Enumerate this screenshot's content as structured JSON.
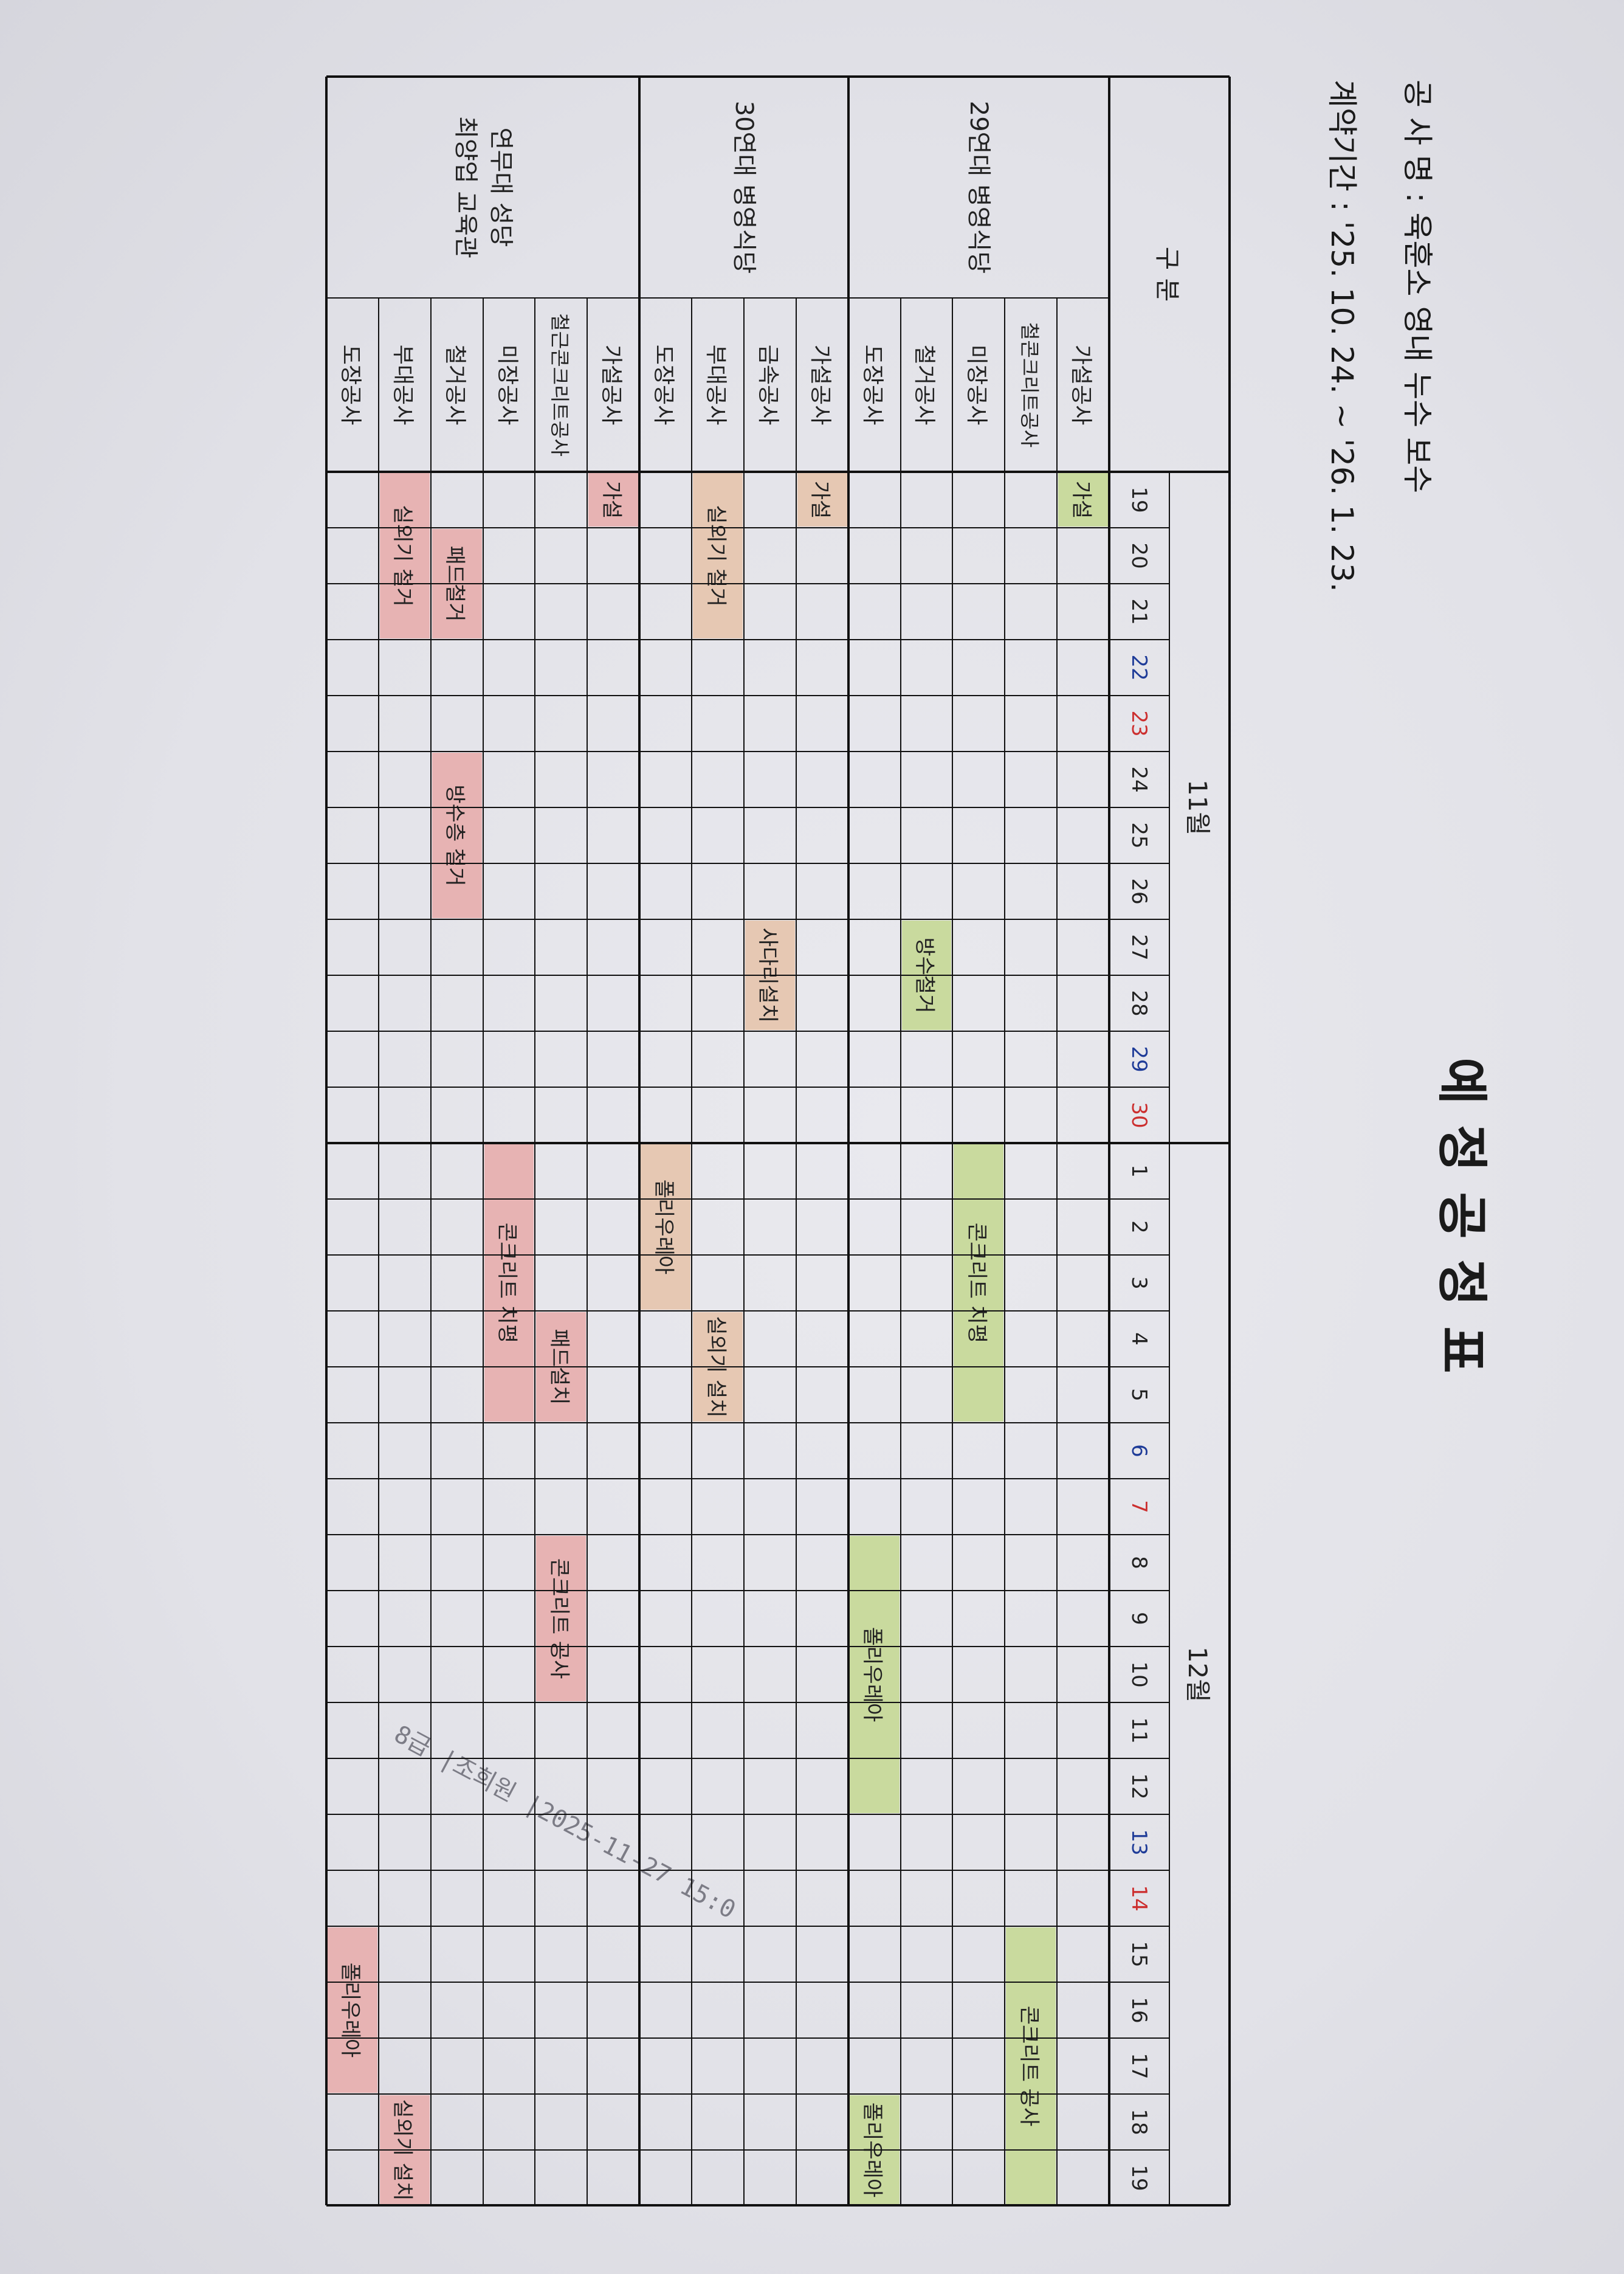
{
  "title": "예 정 공 정 표",
  "project_name": "공 사 명 : 육훈소 영내 누수 보수",
  "contract_period": "계약기간 : '25. 10. 24. ~ '26. 1. 23.",
  "header_label": "구 분",
  "stamp_text": "8급 |조희원 |2025-11-27 15:0",
  "colors": {
    "green": "#c9da9e",
    "peach": "#e6c8b3",
    "pink": "#e7b3b3",
    "sat": "#1f3c98",
    "sun": "#cc2f2f",
    "weekday": "#222222"
  },
  "months": [
    {
      "label": "11월",
      "days": [
        {
          "d": "19",
          "type": "weekday"
        },
        {
          "d": "20",
          "type": "weekday"
        },
        {
          "d": "21",
          "type": "weekday"
        },
        {
          "d": "22",
          "type": "sat"
        },
        {
          "d": "23",
          "type": "sun"
        },
        {
          "d": "24",
          "type": "weekday"
        },
        {
          "d": "25",
          "type": "weekday"
        },
        {
          "d": "26",
          "type": "weekday"
        },
        {
          "d": "27",
          "type": "weekday"
        },
        {
          "d": "28",
          "type": "weekday"
        },
        {
          "d": "29",
          "type": "sat"
        },
        {
          "d": "30",
          "type": "sun"
        }
      ]
    },
    {
      "label": "12월",
      "days": [
        {
          "d": "1",
          "type": "weekday"
        },
        {
          "d": "2",
          "type": "weekday"
        },
        {
          "d": "3",
          "type": "weekday"
        },
        {
          "d": "4",
          "type": "weekday"
        },
        {
          "d": "5",
          "type": "weekday"
        },
        {
          "d": "6",
          "type": "sat"
        },
        {
          "d": "7",
          "type": "sun"
        },
        {
          "d": "8",
          "type": "weekday"
        },
        {
          "d": "9",
          "type": "weekday"
        },
        {
          "d": "10",
          "type": "weekday"
        },
        {
          "d": "11",
          "type": "weekday"
        },
        {
          "d": "12",
          "type": "weekday"
        },
        {
          "d": "13",
          "type": "sat"
        },
        {
          "d": "14",
          "type": "sun"
        },
        {
          "d": "15",
          "type": "weekday"
        },
        {
          "d": "16",
          "type": "weekday"
        },
        {
          "d": "17",
          "type": "weekday"
        },
        {
          "d": "18",
          "type": "weekday"
        },
        {
          "d": "19",
          "type": "weekday"
        }
      ]
    }
  ],
  "groups": [
    {
      "name": [
        "29연대 병영식당"
      ],
      "color": "green",
      "items": [
        {
          "label": "가설공사",
          "bars": [
            {
              "label": "가설",
              "start": "11-19",
              "end": "11-19"
            }
          ]
        },
        {
          "label": "철콘크리트공사",
          "bars": [
            {
              "label": "콘크리트 공사",
              "start": "12-15",
              "end": "12-19"
            }
          ]
        },
        {
          "label": "미장공사",
          "bars": [
            {
              "label": "콘크리트 치평",
              "start": "12-1",
              "end": "12-5"
            }
          ]
        },
        {
          "label": "철거공사",
          "bars": [
            {
              "label": "방수철거",
              "start": "11-27",
              "end": "11-28"
            }
          ]
        },
        {
          "label": "도장공사",
          "bars": [
            {
              "label": "폴리우레아",
              "start": "12-8",
              "end": "12-12"
            },
            {
              "label": "폴리우레아",
              "start": "12-18",
              "end": "12-19"
            }
          ]
        }
      ]
    },
    {
      "name": [
        "30연대 병영식당"
      ],
      "color": "peach",
      "items": [
        {
          "label": "가설공사",
          "bars": [
            {
              "label": "가설",
              "start": "11-19",
              "end": "11-19"
            }
          ]
        },
        {
          "label": "금속공사",
          "bars": [
            {
              "label": "사다리설치",
              "start": "11-27",
              "end": "11-28"
            }
          ]
        },
        {
          "label": "부대공사",
          "bars": [
            {
              "label": "실외기 철거",
              "start": "11-19",
              "end": "11-21"
            },
            {
              "label": "실외기 설치",
              "start": "12-4",
              "end": "12-5"
            }
          ]
        },
        {
          "label": "도장공사",
          "bars": [
            {
              "label": "폴리우레아",
              "start": "12-1",
              "end": "12-3"
            }
          ]
        }
      ]
    },
    {
      "name": [
        "연무대 성당",
        "최양업 교육관"
      ],
      "color": "pink",
      "items": [
        {
          "label": "가설공사",
          "bars": [
            {
              "label": "가설",
              "start": "11-19",
              "end": "11-19"
            }
          ]
        },
        {
          "label": "철근콘크리트공사",
          "bars": [
            {
              "label": "패드설치",
              "start": "12-4",
              "end": "12-5"
            },
            {
              "label": "콘크리트 공사",
              "start": "12-8",
              "end": "12-10"
            }
          ]
        },
        {
          "label": "미장공사",
          "bars": [
            {
              "label": "콘크리트 치평",
              "start": "12-1",
              "end": "12-5"
            }
          ]
        },
        {
          "label": "철거공사",
          "bars": [
            {
              "label": "패드철거",
              "start": "11-20",
              "end": "11-21"
            },
            {
              "label": "방수층 철거",
              "start": "11-24",
              "end": "11-26"
            }
          ]
        },
        {
          "label": "부대공사",
          "bars": [
            {
              "label": "실외기 철거",
              "start": "11-19",
              "end": "11-21"
            },
            {
              "label": "실외기 설치",
              "start": "12-18",
              "end": "12-19"
            }
          ]
        },
        {
          "label": "도장공사",
          "bars": [
            {
              "label": "폴리우레아",
              "start": "12-15",
              "end": "12-17"
            }
          ]
        }
      ]
    }
  ]
}
